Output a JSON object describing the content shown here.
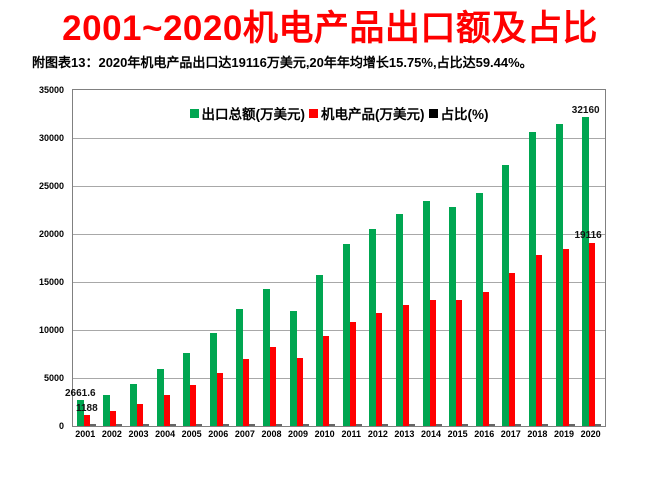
{
  "title": "2001~2020机电产品出口额及占比",
  "title_color": "#ff0000",
  "subtitle": "附图表13：2020年机电产品出口达19116万美元,20年年均增长15.75%,占比达59.44%。",
  "chart_data": {
    "type": "bar",
    "title": "2001~2020机电产品出口额及占比",
    "categories": [
      "2001",
      "2002",
      "2003",
      "2004",
      "2005",
      "2006",
      "2007",
      "2008",
      "2009",
      "2010",
      "2011",
      "2012",
      "2013",
      "2014",
      "2015",
      "2016",
      "2017",
      "2018",
      "2019",
      "2020"
    ],
    "series": [
      {
        "name": "出口总额(万美元)",
        "color": "#00a651",
        "values": [
          2661.6,
          3256,
          4382,
          5933,
          7620,
          9690,
          12180,
          14285,
          12016,
          15778,
          18983,
          20489,
          22090,
          23427,
          22765,
          24300,
          27200,
          30600,
          31500,
          32160
        ]
      },
      {
        "name": "机电产品(万美元)",
        "color": "#ff0000",
        "values": [
          1188,
          1570,
          2275,
          3234,
          4267,
          5494,
          7011,
          8229,
          7131,
          9334,
          10855,
          11794,
          12647,
          13115,
          13110,
          14000,
          15900,
          17850,
          18400,
          19116
        ]
      },
      {
        "name": "占比(%)",
        "color": "#333333",
        "values": [
          44.6,
          48.2,
          51.9,
          54.5,
          56.0,
          56.7,
          57.6,
          57.6,
          59.3,
          59.2,
          57.2,
          57.6,
          57.2,
          56.0,
          57.6,
          57.6,
          58.5,
          58.3,
          58.4,
          59.44
        ]
      }
    ],
    "ylim": [
      0,
      35000
    ],
    "ytick_interval": 5000,
    "yticks": [
      "35000",
      "30000",
      "25000",
      "20000",
      "15000",
      "10000",
      "5000",
      "0"
    ],
    "grid": true,
    "legend_position": "top-center",
    "data_labels": [
      {
        "series": 0,
        "category_index": 0,
        "text": "2661.6"
      },
      {
        "series": 1,
        "category_index": 0,
        "text": "1188"
      },
      {
        "series": 0,
        "category_index": 19,
        "text": "32160"
      },
      {
        "series": 1,
        "category_index": 19,
        "text": "19116"
      }
    ]
  }
}
